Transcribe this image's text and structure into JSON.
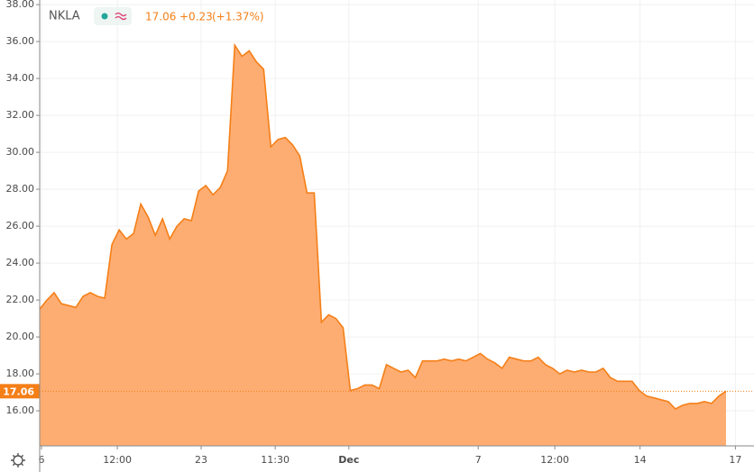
{
  "header": {
    "symbol": "NKLA",
    "price": "17.06",
    "change": "+0.23",
    "change_pct": "(+1.37%)"
  },
  "chart_data": {
    "type": "area",
    "color": "#f57f17",
    "fill": "#fdad72",
    "grid": true,
    "categories": [
      null,
      null,
      null,
      null,
      null,
      null,
      null,
      null,
      null,
      null,
      null,
      null,
      null,
      null,
      null,
      null,
      null,
      null,
      null,
      null,
      null,
      null,
      null,
      null,
      null,
      null,
      null,
      null,
      null,
      null,
      null,
      null,
      null,
      null,
      null,
      null,
      null,
      null,
      null,
      null,
      null,
      null,
      null,
      null,
      null,
      null,
      null,
      null,
      null,
      null,
      null,
      null,
      null,
      null,
      null,
      null,
      null,
      null,
      null,
      null,
      null,
      null,
      null,
      null,
      null,
      null,
      null,
      null,
      null,
      null,
      null,
      null,
      null,
      null,
      null,
      null,
      null,
      null,
      null,
      null,
      null,
      null,
      null,
      null,
      null,
      null,
      null,
      null,
      null,
      null,
      null,
      null,
      null,
      null,
      null,
      null
    ],
    "values": [
      21.5,
      22.0,
      22.4,
      21.8,
      21.7,
      21.6,
      22.2,
      22.4,
      22.2,
      22.1,
      25.0,
      25.8,
      25.3,
      25.6,
      27.2,
      26.5,
      25.5,
      26.4,
      25.3,
      26.0,
      26.4,
      26.3,
      27.9,
      28.2,
      27.7,
      28.1,
      29.0,
      35.8,
      35.2,
      35.5,
      34.9,
      34.5,
      30.3,
      30.7,
      30.8,
      30.4,
      29.8,
      27.8,
      27.8,
      20.8,
      21.2,
      21.0,
      20.5,
      17.1,
      17.2,
      17.4,
      17.4,
      17.2,
      18.5,
      18.3,
      18.1,
      18.2,
      17.8,
      18.7,
      18.7,
      18.7,
      18.8,
      18.7,
      18.8,
      18.7,
      18.9,
      19.1,
      18.8,
      18.6,
      18.3,
      18.9,
      18.8,
      18.7,
      18.7,
      18.9,
      18.5,
      18.3,
      18.0,
      18.2,
      18.1,
      18.2,
      18.1,
      18.1,
      18.3,
      17.8,
      17.6,
      17.6,
      17.6,
      17.1,
      16.8,
      16.7,
      16.6,
      16.5,
      16.1,
      16.3,
      16.4,
      16.4,
      16.5,
      16.4,
      16.8,
      17.06
    ],
    "xlim": [
      0,
      98
    ],
    "xticks": [
      {
        "value": 0.25,
        "label": "6"
      },
      {
        "value": 10.75,
        "label": "12:00"
      },
      {
        "value": 22.35,
        "label": "23"
      },
      {
        "value": 32.6,
        "label": "11:30"
      },
      {
        "value": 42.8,
        "label": "Dec"
      },
      {
        "value": 60.7,
        "label": "7"
      },
      {
        "value": 71.3,
        "label": "12:00"
      },
      {
        "value": 83.1,
        "label": "14"
      },
      {
        "value": 96.3,
        "label": "17"
      }
    ],
    "ylim": [
      14.1,
      38.25
    ],
    "yticks": [
      {
        "value": 16,
        "label": "16.00"
      },
      {
        "value": 18,
        "label": "18.00"
      },
      {
        "value": 20,
        "label": "20.00"
      },
      {
        "value": 22,
        "label": "22.00"
      },
      {
        "value": 24,
        "label": "24.00"
      },
      {
        "value": 26,
        "label": "26.00"
      },
      {
        "value": 28,
        "label": "28.00"
      },
      {
        "value": 30,
        "label": "30.00"
      },
      {
        "value": 32,
        "label": "32.00"
      },
      {
        "value": 34,
        "label": "34.00"
      },
      {
        "value": 36,
        "label": "36.00"
      },
      {
        "value": 38,
        "label": "38.00"
      }
    ],
    "price_line": {
      "value": 17.06,
      "label": "17.06"
    }
  }
}
